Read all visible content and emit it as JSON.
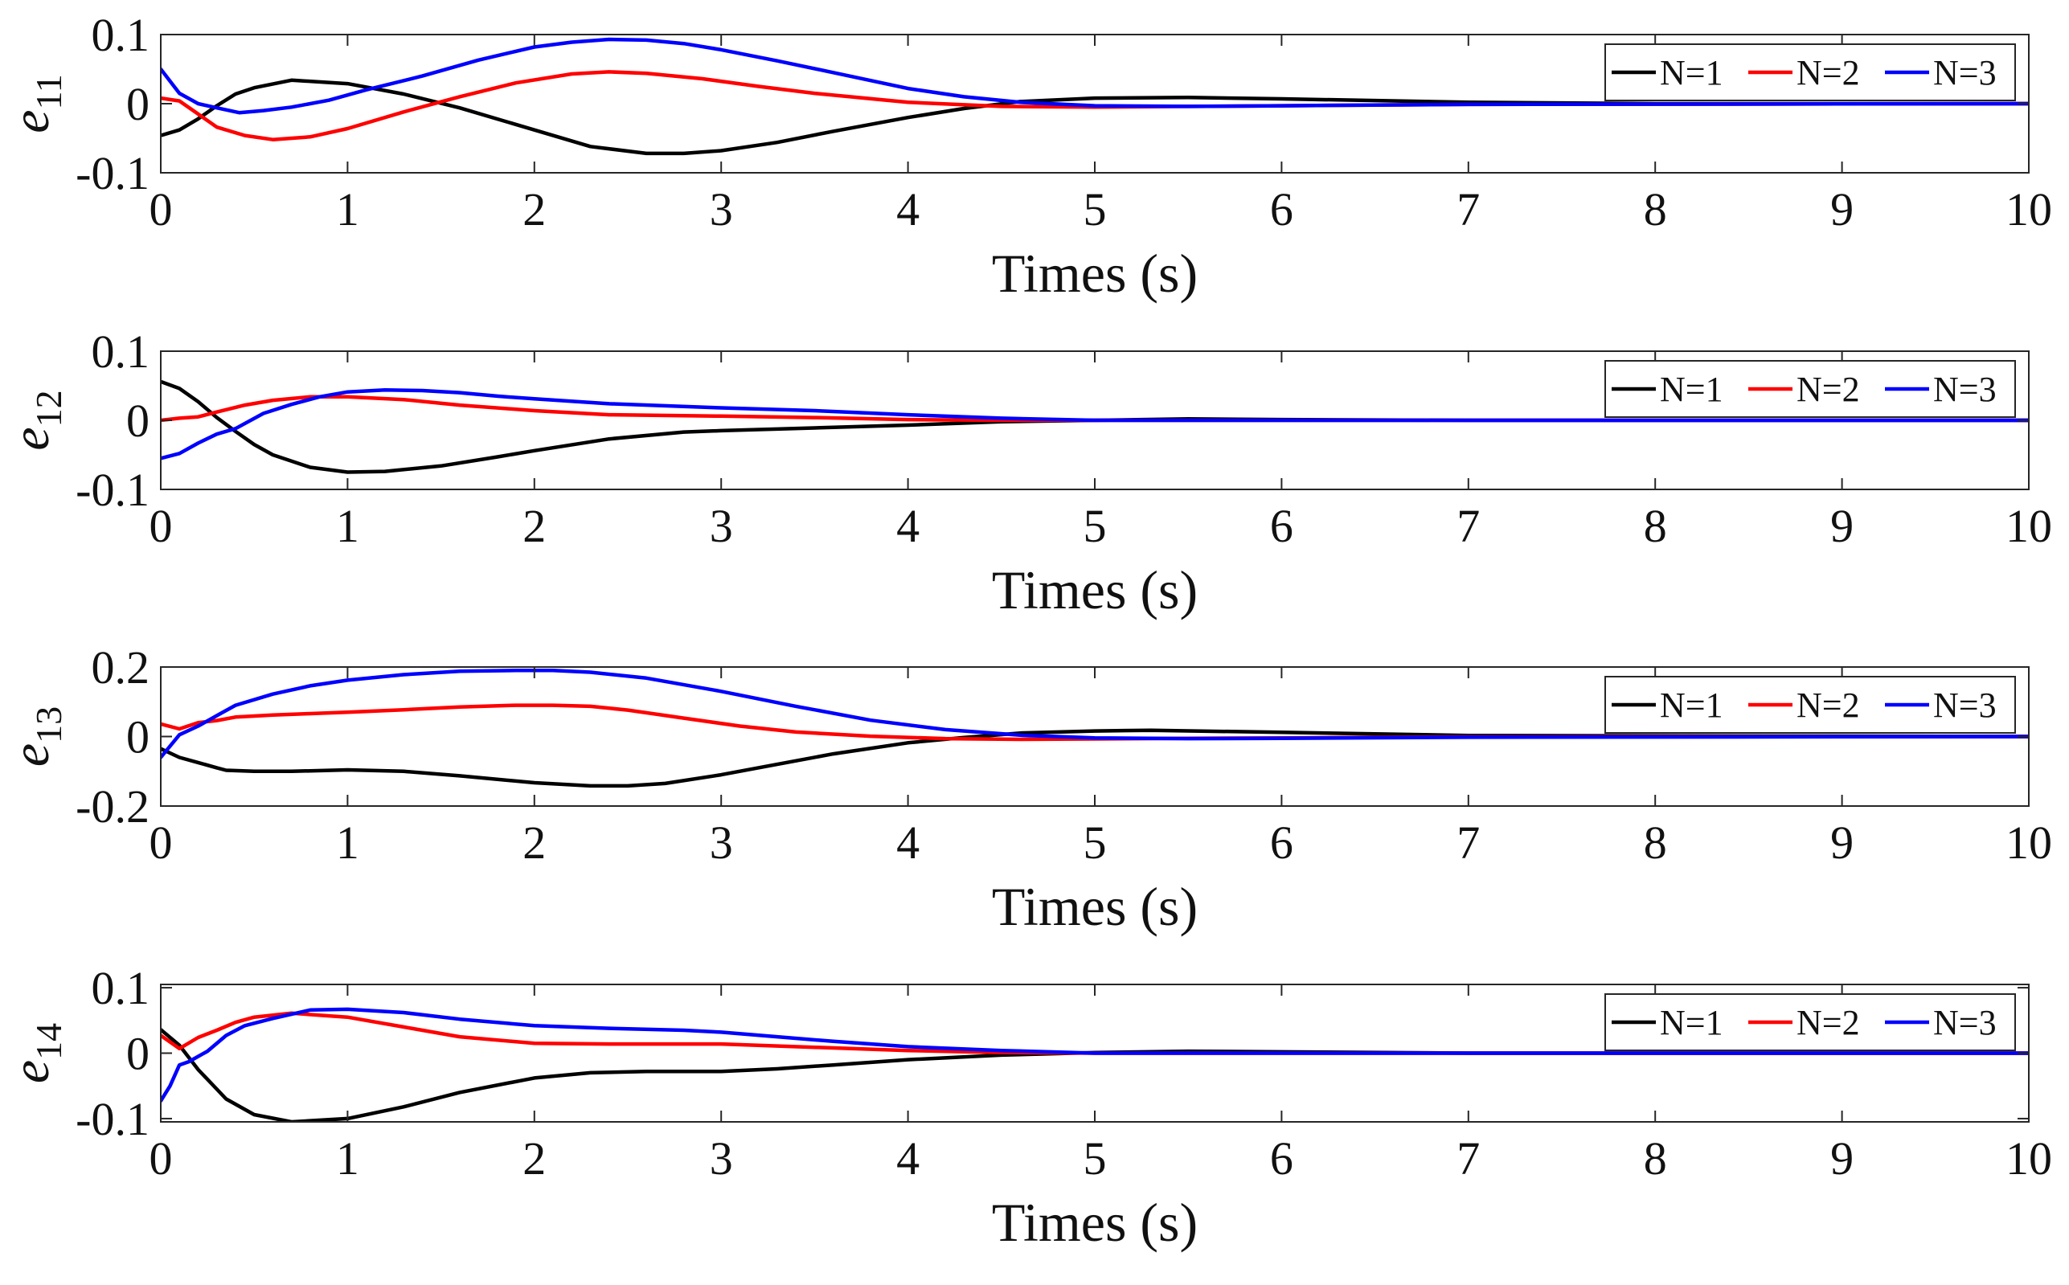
{
  "chart_data": [
    {
      "type": "line",
      "ylabel": {
        "main": "e",
        "sub": "11"
      },
      "xlabel": "Times (s)",
      "xlim": [
        0,
        10
      ],
      "ylim": [
        -0.1,
        0.1
      ],
      "xticks": [
        "0",
        "1",
        "2",
        "3",
        "4",
        "5",
        "6",
        "7",
        "8",
        "9",
        "10"
      ],
      "yticks": [
        {
          "value": 0.1,
          "label": "0.1"
        },
        {
          "value": 0,
          "label": "0"
        },
        {
          "value": -0.1,
          "label": "-0.1"
        }
      ],
      "grid": false,
      "legend": {
        "placement": "top-right",
        "orientation": "horizontal"
      },
      "series": [
        {
          "name": "N=1",
          "color": "#000000",
          "x": [
            0,
            0.1,
            0.2,
            0.3,
            0.4,
            0.5,
            0.7,
            1.0,
            1.3,
            1.6,
            2.0,
            2.3,
            2.6,
            2.8,
            3.0,
            3.3,
            3.6,
            4.0,
            4.3,
            4.6,
            5.0,
            5.5,
            6.0,
            7.0,
            8.0,
            10.0
          ],
          "y": [
            -0.046,
            -0.038,
            -0.022,
            -0.003,
            0.014,
            0.023,
            0.034,
            0.029,
            0.014,
            -0.006,
            -0.038,
            -0.062,
            -0.072,
            -0.072,
            -0.068,
            -0.056,
            -0.04,
            -0.02,
            -0.007,
            0.003,
            0.008,
            0.009,
            0.007,
            0.002,
            0.0,
            0.0
          ]
        },
        {
          "name": "N=2",
          "color": "#ff0000",
          "x": [
            0,
            0.1,
            0.2,
            0.3,
            0.45,
            0.6,
            0.8,
            1.0,
            1.3,
            1.6,
            1.9,
            2.2,
            2.4,
            2.6,
            2.9,
            3.2,
            3.5,
            4.0,
            4.5,
            5.0,
            5.5,
            6.0,
            7.0,
            10.0
          ],
          "y": [
            0.008,
            0.004,
            -0.015,
            -0.034,
            -0.046,
            -0.052,
            -0.048,
            -0.036,
            -0.012,
            0.01,
            0.03,
            0.043,
            0.046,
            0.044,
            0.036,
            0.025,
            0.015,
            0.002,
            -0.004,
            -0.005,
            -0.004,
            -0.003,
            -0.001,
            0.0
          ]
        },
        {
          "name": "N=3",
          "color": "#0000ff",
          "x": [
            0,
            0.1,
            0.2,
            0.3,
            0.42,
            0.55,
            0.7,
            0.9,
            1.1,
            1.4,
            1.7,
            2.0,
            2.2,
            2.4,
            2.6,
            2.8,
            3.0,
            3.3,
            3.6,
            4.0,
            4.3,
            4.6,
            5.0,
            5.5,
            6.0,
            7.0,
            10.0
          ],
          "y": [
            0.05,
            0.015,
            0.0,
            -0.006,
            -0.013,
            -0.01,
            -0.005,
            0.005,
            0.02,
            0.04,
            0.063,
            0.082,
            0.089,
            0.093,
            0.092,
            0.087,
            0.078,
            0.062,
            0.045,
            0.022,
            0.01,
            0.002,
            -0.003,
            -0.004,
            -0.003,
            -0.001,
            0.0
          ]
        }
      ]
    },
    {
      "type": "line",
      "ylabel": {
        "main": "e",
        "sub": "12"
      },
      "xlabel": "Times (s)",
      "xlim": [
        0,
        10
      ],
      "ylim": [
        -0.1,
        0.1
      ],
      "xticks": [
        "0",
        "1",
        "2",
        "3",
        "4",
        "5",
        "6",
        "7",
        "8",
        "9",
        "10"
      ],
      "yticks": [
        {
          "value": 0.1,
          "label": "0.1"
        },
        {
          "value": 0,
          "label": "0"
        },
        {
          "value": -0.1,
          "label": "-0.1"
        }
      ],
      "grid": false,
      "legend": {
        "placement": "top-right",
        "orientation": "horizontal"
      },
      "series": [
        {
          "name": "N=1",
          "color": "#000000",
          "x": [
            0,
            0.1,
            0.2,
            0.3,
            0.4,
            0.5,
            0.6,
            0.8,
            1.0,
            1.2,
            1.5,
            1.8,
            2.0,
            2.4,
            2.8,
            3.0,
            3.5,
            4.0,
            4.5,
            5.0,
            5.5,
            6.0,
            7.0,
            10.0
          ],
          "y": [
            0.056,
            0.046,
            0.027,
            0.004,
            -0.016,
            -0.035,
            -0.05,
            -0.068,
            -0.075,
            -0.074,
            -0.066,
            -0.053,
            -0.044,
            -0.027,
            -0.017,
            -0.015,
            -0.011,
            -0.007,
            -0.002,
            0.0,
            0.002,
            0.001,
            0.0,
            0.0
          ]
        },
        {
          "name": "N=2",
          "color": "#ff0000",
          "x": [
            0,
            0.1,
            0.2,
            0.3,
            0.45,
            0.6,
            0.8,
            1.0,
            1.3,
            1.6,
            2.0,
            2.4,
            3.0,
            3.5,
            4.0,
            4.5,
            5.0,
            6.0,
            10.0
          ],
          "y": [
            0.0,
            0.003,
            0.005,
            0.012,
            0.022,
            0.029,
            0.034,
            0.034,
            0.03,
            0.022,
            0.014,
            0.008,
            0.006,
            0.004,
            0.001,
            0.0,
            0.0,
            0.0,
            0.0
          ]
        },
        {
          "name": "N=3",
          "color": "#0000ff",
          "x": [
            0,
            0.1,
            0.2,
            0.3,
            0.4,
            0.55,
            0.7,
            0.85,
            1.0,
            1.2,
            1.4,
            1.6,
            1.8,
            2.0,
            2.4,
            3.0,
            3.5,
            4.0,
            4.5,
            5.0,
            5.5,
            6.0,
            7.0,
            10.0
          ],
          "y": [
            -0.055,
            -0.048,
            -0.033,
            -0.02,
            -0.012,
            0.01,
            0.023,
            0.034,
            0.041,
            0.044,
            0.043,
            0.04,
            0.035,
            0.031,
            0.024,
            0.018,
            0.014,
            0.008,
            0.003,
            0.0,
            0.0,
            0.0,
            0.0,
            0.0
          ]
        }
      ]
    },
    {
      "type": "line",
      "ylabel": {
        "main": "e",
        "sub": "13"
      },
      "xlabel": "Times (s)",
      "xlim": [
        0,
        10
      ],
      "ylim": [
        -0.2,
        0.2
      ],
      "xticks": [
        "0",
        "1",
        "2",
        "3",
        "4",
        "5",
        "6",
        "7",
        "8",
        "9",
        "10"
      ],
      "yticks": [
        {
          "value": 0.2,
          "label": "0.2"
        },
        {
          "value": 0,
          "label": "0"
        },
        {
          "value": -0.2,
          "label": "-0.2"
        }
      ],
      "grid": false,
      "legend": {
        "placement": "top-right",
        "orientation": "horizontal"
      },
      "series": [
        {
          "name": "N=1",
          "color": "#000000",
          "x": [
            0,
            0.1,
            0.2,
            0.3,
            0.35,
            0.5,
            0.7,
            1.0,
            1.3,
            1.6,
            2.0,
            2.3,
            2.5,
            2.7,
            3.0,
            3.3,
            3.6,
            4.0,
            4.3,
            4.6,
            5.0,
            5.3,
            6.0,
            7.0,
            10.0
          ],
          "y": [
            -0.035,
            -0.06,
            -0.075,
            -0.09,
            -0.097,
            -0.1,
            -0.1,
            -0.096,
            -0.1,
            -0.113,
            -0.133,
            -0.142,
            -0.142,
            -0.135,
            -0.11,
            -0.08,
            -0.05,
            -0.018,
            -0.003,
            0.01,
            0.016,
            0.018,
            0.012,
            0.003,
            0.0
          ]
        },
        {
          "name": "N=2",
          "color": "#ff0000",
          "x": [
            0,
            0.1,
            0.2,
            0.3,
            0.4,
            0.6,
            0.8,
            1.0,
            1.3,
            1.6,
            1.9,
            2.1,
            2.3,
            2.5,
            2.8,
            3.1,
            3.4,
            3.8,
            4.2,
            4.6,
            5.0,
            5.5,
            6.0,
            7.0,
            10.0
          ],
          "y": [
            0.036,
            0.022,
            0.04,
            0.046,
            0.056,
            0.062,
            0.066,
            0.07,
            0.077,
            0.085,
            0.09,
            0.09,
            0.087,
            0.076,
            0.053,
            0.03,
            0.013,
            0.001,
            -0.006,
            -0.008,
            -0.007,
            -0.005,
            -0.004,
            -0.001,
            0.0
          ]
        },
        {
          "name": "N=3",
          "color": "#0000ff",
          "x": [
            0,
            0.1,
            0.2,
            0.3,
            0.4,
            0.6,
            0.8,
            1.0,
            1.3,
            1.6,
            1.9,
            2.1,
            2.3,
            2.6,
            3.0,
            3.4,
            3.8,
            4.2,
            4.6,
            5.0,
            5.5,
            6.0,
            7.0,
            10.0
          ],
          "y": [
            -0.06,
            0.005,
            0.03,
            0.06,
            0.09,
            0.122,
            0.146,
            0.162,
            0.178,
            0.188,
            0.19,
            0.19,
            0.185,
            0.168,
            0.13,
            0.087,
            0.047,
            0.02,
            0.004,
            -0.004,
            -0.006,
            -0.005,
            -0.002,
            0.0
          ]
        }
      ]
    },
    {
      "type": "line",
      "ylabel": {
        "main": "e",
        "sub": "14"
      },
      "xlabel": "Times (s)",
      "xlim": [
        0,
        10
      ],
      "ylim": [
        -0.105,
        0.105
      ],
      "xticks": [
        "0",
        "1",
        "2",
        "3",
        "4",
        "5",
        "6",
        "7",
        "8",
        "9",
        "10"
      ],
      "yticks": [
        {
          "value": 0.1,
          "label": "0.1"
        },
        {
          "value": 0,
          "label": "0"
        },
        {
          "value": -0.1,
          "label": "-0.1"
        }
      ],
      "grid": false,
      "legend": {
        "placement": "top-right",
        "orientation": "horizontal"
      },
      "series": [
        {
          "name": "N=1",
          "color": "#000000",
          "x": [
            0,
            0.1,
            0.2,
            0.35,
            0.5,
            0.7,
            1.0,
            1.3,
            1.6,
            2.0,
            2.3,
            2.6,
            3.0,
            3.3,
            3.6,
            4.0,
            4.5,
            5.0,
            5.5,
            6.0,
            7.0,
            10.0
          ],
          "y": [
            0.036,
            0.012,
            -0.025,
            -0.07,
            -0.094,
            -0.105,
            -0.1,
            -0.082,
            -0.06,
            -0.038,
            -0.03,
            -0.028,
            -0.028,
            -0.024,
            -0.018,
            -0.01,
            -0.003,
            0.001,
            0.003,
            0.002,
            0.0,
            0.0
          ]
        },
        {
          "name": "N=2",
          "color": "#ff0000",
          "x": [
            0,
            0.1,
            0.2,
            0.3,
            0.4,
            0.5,
            0.7,
            1.0,
            1.3,
            1.6,
            2.0,
            2.4,
            3.0,
            3.5,
            4.0,
            4.5,
            5.0,
            6.0,
            10.0
          ],
          "y": [
            0.027,
            0.007,
            0.024,
            0.035,
            0.047,
            0.055,
            0.061,
            0.055,
            0.04,
            0.025,
            0.015,
            0.014,
            0.014,
            0.009,
            0.004,
            0.001,
            0.0,
            0.0,
            0.0
          ]
        },
        {
          "name": "N=3",
          "color": "#0000ff",
          "x": [
            0,
            0.05,
            0.1,
            0.15,
            0.25,
            0.35,
            0.45,
            0.6,
            0.8,
            1.0,
            1.3,
            1.6,
            2.0,
            2.4,
            2.8,
            3.0,
            3.3,
            3.6,
            4.0,
            4.5,
            5.0,
            6.0,
            10.0
          ],
          "y": [
            -0.073,
            -0.05,
            -0.018,
            -0.013,
            0.003,
            0.027,
            0.042,
            0.053,
            0.066,
            0.067,
            0.062,
            0.052,
            0.042,
            0.038,
            0.035,
            0.032,
            0.025,
            0.018,
            0.01,
            0.004,
            0.0,
            0.0,
            0.0
          ]
        }
      ]
    }
  ]
}
